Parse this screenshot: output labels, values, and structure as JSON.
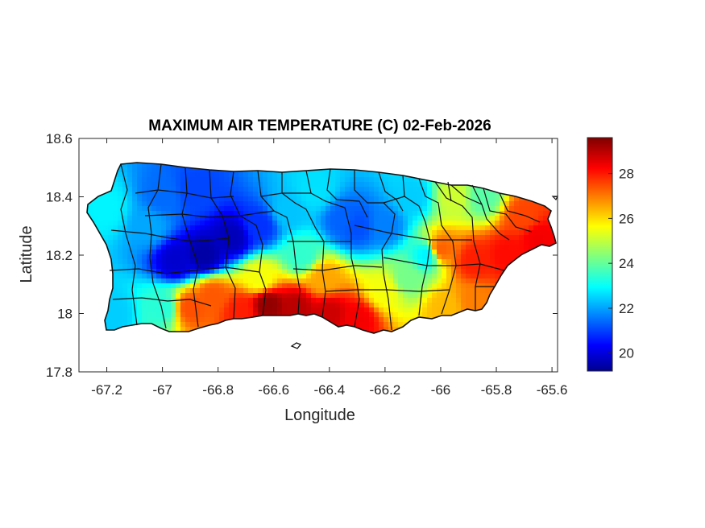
{
  "chart_data": {
    "type": "heatmap",
    "title": "MAXIMUM AIR TEMPERATURE (C) 02-Feb-2026",
    "xlabel": "Longitude",
    "ylabel": "Latitude",
    "xlim": [
      -67.3,
      -65.58
    ],
    "ylim": [
      17.8,
      18.6
    ],
    "xticks": [
      -67.2,
      -67,
      -66.8,
      -66.6,
      -66.4,
      -66.2,
      -66,
      -65.8,
      -65.6
    ],
    "xtick_labels": [
      "-67.2",
      "-67",
      "-66.8",
      "-66.6",
      "-66.4",
      "-66.2",
      "-66",
      "-65.8",
      "-65.6"
    ],
    "yticks": [
      17.8,
      18,
      18.2,
      18.4,
      18.6
    ],
    "ytick_labels": [
      "17.8",
      "18",
      "18.2",
      "18.4",
      "18.6"
    ],
    "colorbar": {
      "colormap": "jet",
      "clim": [
        19.2,
        29.6
      ],
      "ticks": [
        20,
        22,
        24,
        26,
        28
      ],
      "tick_labels": [
        "20",
        "22",
        "24",
        "26",
        "28"
      ]
    },
    "field": [
      {
        "lon": -67.2,
        "lat": 18.36,
        "temp": 23.0
      },
      {
        "lon": -67.18,
        "lat": 18.0,
        "temp": 22.6
      },
      {
        "lon": -67.05,
        "lat": 18.3,
        "temp": 22.2
      },
      {
        "lon": -67.0,
        "lat": 18.4,
        "temp": 21.6
      },
      {
        "lon": -66.88,
        "lat": 18.42,
        "temp": 21.2
      },
      {
        "lon": -66.95,
        "lat": 18.18,
        "temp": 20.0
      },
      {
        "lon": -66.85,
        "lat": 18.2,
        "temp": 19.6
      },
      {
        "lon": -66.75,
        "lat": 18.26,
        "temp": 19.8
      },
      {
        "lon": -66.65,
        "lat": 18.3,
        "temp": 21.0
      },
      {
        "lon": -66.55,
        "lat": 18.35,
        "temp": 22.5
      },
      {
        "lon": -66.45,
        "lat": 18.42,
        "temp": 22.8
      },
      {
        "lon": -66.35,
        "lat": 18.32,
        "temp": 21.5
      },
      {
        "lon": -66.3,
        "lat": 18.3,
        "temp": 21.3
      },
      {
        "lon": -66.2,
        "lat": 18.3,
        "temp": 21.8
      },
      {
        "lon": -66.1,
        "lat": 18.4,
        "temp": 22.6
      },
      {
        "lon": -66.05,
        "lat": 18.2,
        "temp": 23.0
      },
      {
        "lon": -66.0,
        "lat": 18.22,
        "temp": 27.3
      },
      {
        "lon": -65.95,
        "lat": 18.4,
        "temp": 25.2
      },
      {
        "lon": -65.85,
        "lat": 18.4,
        "temp": 24.0
      },
      {
        "lon": -65.88,
        "lat": 18.18,
        "temp": 28.0
      },
      {
        "lon": -65.76,
        "lat": 18.2,
        "temp": 28.2
      },
      {
        "lon": -65.7,
        "lat": 18.33,
        "temp": 27.6
      },
      {
        "lon": -65.65,
        "lat": 18.26,
        "temp": 28.4
      },
      {
        "lon": -65.88,
        "lat": 18.04,
        "temp": 27.0
      },
      {
        "lon": -65.98,
        "lat": 18.02,
        "temp": 26.4
      },
      {
        "lon": -66.12,
        "lat": 18.12,
        "temp": 24.3
      },
      {
        "lon": -66.2,
        "lat": 18.08,
        "temp": 25.6
      },
      {
        "lon": -66.3,
        "lat": 17.98,
        "temp": 28.4
      },
      {
        "lon": -66.4,
        "lat": 18.0,
        "temp": 28.8
      },
      {
        "lon": -66.52,
        "lat": 18.02,
        "temp": 29.0
      },
      {
        "lon": -66.62,
        "lat": 18.03,
        "temp": 29.4
      },
      {
        "lon": -66.72,
        "lat": 18.01,
        "temp": 28.0
      },
      {
        "lon": -66.82,
        "lat": 18.06,
        "temp": 27.4
      },
      {
        "lon": -66.9,
        "lat": 18.02,
        "temp": 27.5
      },
      {
        "lon": -67.0,
        "lat": 18.02,
        "temp": 23.5
      },
      {
        "lon": -66.65,
        "lat": 18.12,
        "temp": 25.6
      },
      {
        "lon": -66.5,
        "lat": 18.2,
        "temp": 23.6
      },
      {
        "lon": -66.42,
        "lat": 18.12,
        "temp": 26.6
      }
    ]
  }
}
